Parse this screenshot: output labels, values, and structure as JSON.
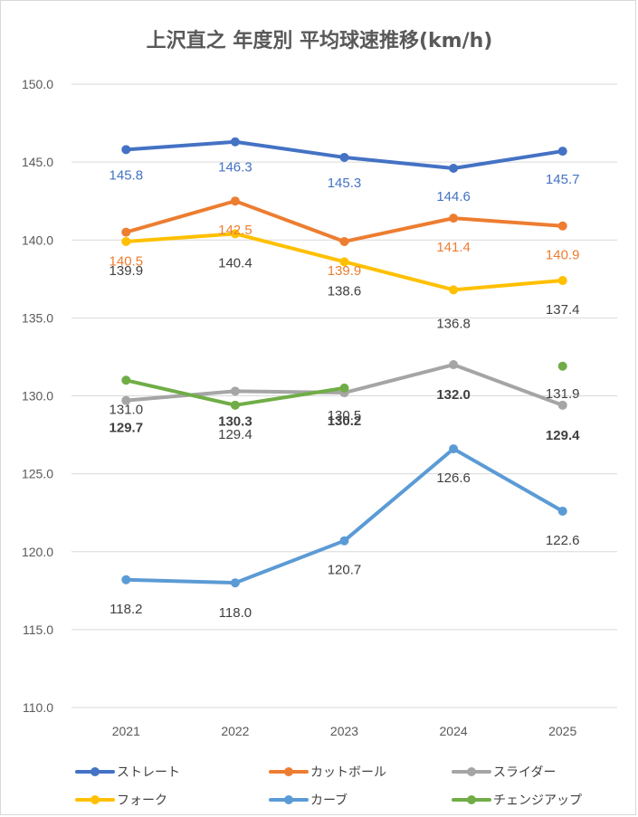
{
  "chart_data": {
    "type": "line",
    "title": "上沢直之 年度別 平均球速推移(km/h)",
    "categories": [
      "2021",
      "2022",
      "2023",
      "2024",
      "2025"
    ],
    "ylim": [
      110.0,
      150.0
    ],
    "y_ticks": [
      "110.0",
      "115.0",
      "120.0",
      "125.0",
      "130.0",
      "135.0",
      "140.0",
      "145.0",
      "150.0"
    ],
    "grid": true,
    "legend_position": "bottom",
    "series": [
      {
        "name": "ストレート",
        "color": "#4472C4",
        "values": [
          145.8,
          146.3,
          145.3,
          144.6,
          145.7
        ],
        "label_color": "#4472C4",
        "labels": [
          "145.8",
          "146.3",
          "145.3",
          "144.6",
          "145.7"
        ],
        "bold": [
          false,
          false,
          false,
          false,
          false
        ]
      },
      {
        "name": "カットボール",
        "color": "#ED7D31",
        "values": [
          140.5,
          142.5,
          139.9,
          141.4,
          140.9
        ],
        "label_color": "#ED7D31",
        "labels": [
          "140.5",
          "142.5",
          "139.9",
          "141.4",
          "140.9"
        ],
        "bold": [
          false,
          false,
          false,
          false,
          false
        ]
      },
      {
        "name": "スライダー",
        "color": "#A5A5A5",
        "values": [
          129.7,
          130.3,
          130.2,
          132.0,
          129.4
        ],
        "label_color": "#404040",
        "labels": [
          "129.7",
          "130.3",
          "130.2",
          "132.0",
          "129.4"
        ],
        "bold": [
          true,
          true,
          true,
          true,
          true
        ]
      },
      {
        "name": "フォーク",
        "color": "#FFC000",
        "values": [
          139.9,
          140.4,
          138.6,
          136.8,
          137.4
        ],
        "label_color": "#404040",
        "labels": [
          "139.9",
          "140.4",
          "138.6",
          "136.8",
          "137.4"
        ],
        "bold": [
          false,
          false,
          false,
          false,
          false
        ]
      },
      {
        "name": "カーブ",
        "color": "#5B9BD5",
        "values": [
          118.2,
          118.0,
          120.7,
          126.6,
          122.6
        ],
        "label_color": "#404040",
        "labels": [
          "118.2",
          "118.0",
          "120.7",
          "126.6",
          "122.6"
        ],
        "bold": [
          false,
          false,
          false,
          false,
          false
        ]
      },
      {
        "name": "チェンジアップ",
        "color": "#70AD47",
        "values": [
          131.0,
          129.4,
          130.5,
          null,
          131.9
        ],
        "label_color": "#404040",
        "labels": [
          "131.0",
          "129.4",
          "130.5",
          "",
          "131.9"
        ],
        "bold": [
          false,
          false,
          false,
          false,
          false
        ]
      }
    ]
  }
}
